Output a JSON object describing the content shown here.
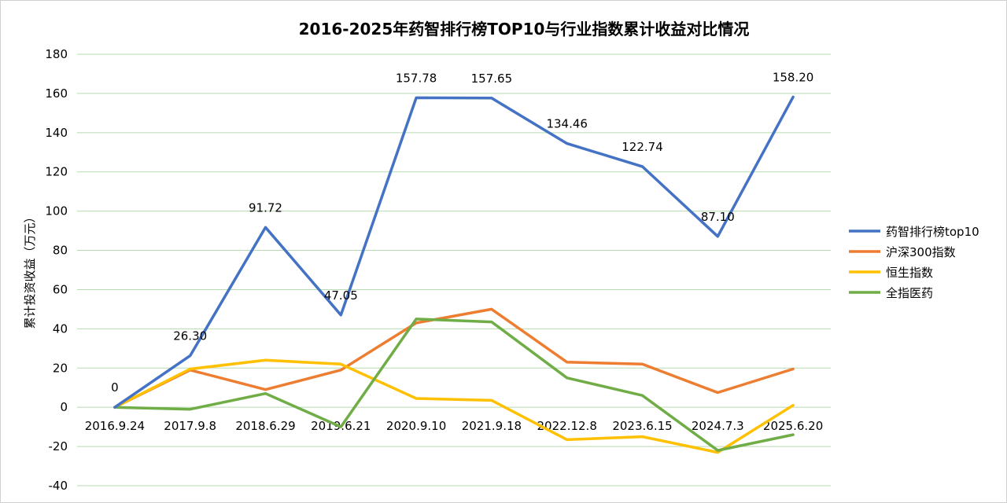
{
  "chart_data": {
    "type": "line",
    "title": "2016-2025年药智排行榜TOP10与行业指数累计收益对比情况",
    "ylabel": "累计投资收益（万元）",
    "xlabel": "",
    "ylim": [
      -40,
      180
    ],
    "yticks": [
      180,
      160,
      140,
      120,
      100,
      80,
      60,
      40,
      20,
      0,
      -20,
      -40
    ],
    "grid": true,
    "legend_position": "right",
    "categories": [
      "2016.9.24",
      "2017.9.8",
      "2018.6.29",
      "2019.6.21",
      "2020.9.10",
      "2021.9.18",
      "2022.12.8",
      "2023.6.15",
      "2024.7.3",
      "2025.6.20"
    ],
    "series": [
      {
        "name": "药智排行榜top10",
        "color": "#4472C4",
        "values": [
          0,
          26.3,
          91.72,
          47.05,
          157.78,
          157.65,
          134.46,
          122.74,
          87.1,
          158.2
        ],
        "labels": [
          "0",
          "26.30",
          "91.72",
          "47.05",
          "157.78",
          "157.65",
          "134.46",
          "122.74",
          "87.10",
          "158.20"
        ]
      },
      {
        "name": "沪深300指数",
        "color": "#ED7D31",
        "values": [
          0,
          19,
          9,
          19,
          43,
          50,
          23,
          22,
          7.5,
          19.5
        ]
      },
      {
        "name": "恒生指数",
        "color": "#FFC000",
        "values": [
          0,
          19.5,
          24,
          22,
          4.5,
          3.5,
          -16.5,
          -15,
          -23,
          1
        ]
      },
      {
        "name": "全指医药",
        "color": "#70AD47",
        "values": [
          0,
          -1,
          7,
          -10,
          45,
          43.5,
          15,
          6,
          -22,
          -14
        ]
      }
    ]
  }
}
